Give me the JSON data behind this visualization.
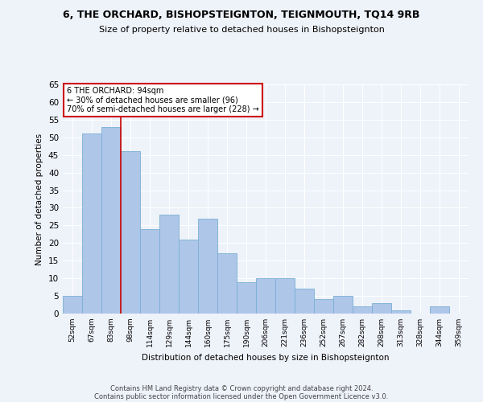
{
  "title1": "6, THE ORCHARD, BISHOPSTEIGNTON, TEIGNMOUTH, TQ14 9RB",
  "title2": "Size of property relative to detached houses in Bishopsteignton",
  "xlabel": "Distribution of detached houses by size in Bishopsteignton",
  "ylabel": "Number of detached properties",
  "categories": [
    "52sqm",
    "67sqm",
    "83sqm",
    "98sqm",
    "114sqm",
    "129sqm",
    "144sqm",
    "160sqm",
    "175sqm",
    "190sqm",
    "206sqm",
    "221sqm",
    "236sqm",
    "252sqm",
    "267sqm",
    "282sqm",
    "298sqm",
    "313sqm",
    "328sqm",
    "344sqm",
    "359sqm"
  ],
  "values": [
    5,
    51,
    53,
    46,
    24,
    28,
    21,
    27,
    17,
    9,
    10,
    10,
    7,
    4,
    5,
    2,
    3,
    1,
    0,
    2,
    0
  ],
  "bar_color": "#aec6e8",
  "bar_edge_color": "#7aafd4",
  "annotation_text": "6 THE ORCHARD: 94sqm\n← 30% of detached houses are smaller (96)\n70% of semi-detached houses are larger (228) →",
  "annotation_box_color": "#ffffff",
  "annotation_box_edge_color": "#cc0000",
  "ylim": [
    0,
    65
  ],
  "yticks": [
    0,
    5,
    10,
    15,
    20,
    25,
    30,
    35,
    40,
    45,
    50,
    55,
    60,
    65
  ],
  "footer1": "Contains HM Land Registry data © Crown copyright and database right 2024.",
  "footer2": "Contains public sector information licensed under the Open Government Licence v3.0.",
  "bg_color": "#eef2f9",
  "grid_color": "#ffffff"
}
